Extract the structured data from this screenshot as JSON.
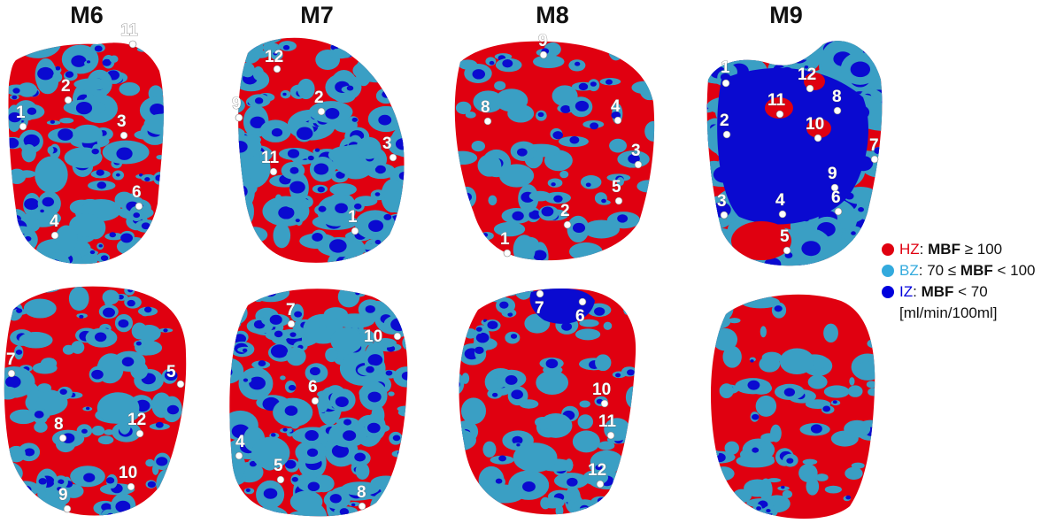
{
  "columns": [
    "M6",
    "M7",
    "M8",
    "M9"
  ],
  "colors": {
    "healthy": "#e00010",
    "border": "#3a9fc4",
    "ischemic": "#0a0ad0",
    "marker": "#ffffff"
  },
  "legend": {
    "hz": {
      "code": "HZ",
      "sep": ":",
      "metric": "MBF",
      "cond": "≥ 100",
      "color": "#e00010"
    },
    "bz": {
      "code": "BZ",
      "sep": ":",
      "prefix": "70 ≤",
      "metric": "MBF",
      "cond": "< 100",
      "color": "#33aadd"
    },
    "iz": {
      "code": "IZ",
      "sep": ":",
      "metric": "MBF",
      "cond": "< 70",
      "color": "#0000dd"
    },
    "units": "[ml/min/100ml]"
  },
  "views": [
    {
      "model": "M6",
      "view": "top",
      "markers": [
        {
          "label": "1"
        },
        {
          "label": "2"
        },
        {
          "label": "3"
        },
        {
          "label": "4"
        },
        {
          "label": "6"
        },
        {
          "label": "11"
        }
      ]
    },
    {
      "model": "M7",
      "view": "top",
      "markers": [
        {
          "label": "12"
        },
        {
          "label": "9"
        },
        {
          "label": "2"
        },
        {
          "label": "11"
        },
        {
          "label": "3"
        },
        {
          "label": "1"
        }
      ]
    },
    {
      "model": "M8",
      "view": "top",
      "markers": [
        {
          "label": "9"
        },
        {
          "label": "8"
        },
        {
          "label": "4"
        },
        {
          "label": "3"
        },
        {
          "label": "5"
        },
        {
          "label": "2"
        },
        {
          "label": "1"
        }
      ]
    },
    {
      "model": "M9",
      "view": "top",
      "markers": [
        {
          "label": "12"
        },
        {
          "label": "1"
        },
        {
          "label": "11"
        },
        {
          "label": "8"
        },
        {
          "label": "10"
        },
        {
          "label": "2"
        },
        {
          "label": "7"
        },
        {
          "label": "9"
        },
        {
          "label": "3"
        },
        {
          "label": "4"
        },
        {
          "label": "6"
        },
        {
          "label": "5"
        }
      ]
    },
    {
      "model": "M6",
      "view": "bottom",
      "markers": [
        {
          "label": "7"
        },
        {
          "label": "5"
        },
        {
          "label": "8"
        },
        {
          "label": "12"
        },
        {
          "label": "10"
        },
        {
          "label": "9"
        }
      ]
    },
    {
      "model": "M7",
      "view": "bottom",
      "markers": [
        {
          "label": "7"
        },
        {
          "label": "10"
        },
        {
          "label": "6"
        },
        {
          "label": "4"
        },
        {
          "label": "5"
        },
        {
          "label": "8"
        }
      ]
    },
    {
      "model": "M8",
      "view": "bottom",
      "markers": [
        {
          "label": "7"
        },
        {
          "label": "6"
        },
        {
          "label": "10"
        },
        {
          "label": "11"
        },
        {
          "label": "12"
        }
      ]
    },
    {
      "model": "M9",
      "view": "bottom",
      "markers": []
    }
  ]
}
